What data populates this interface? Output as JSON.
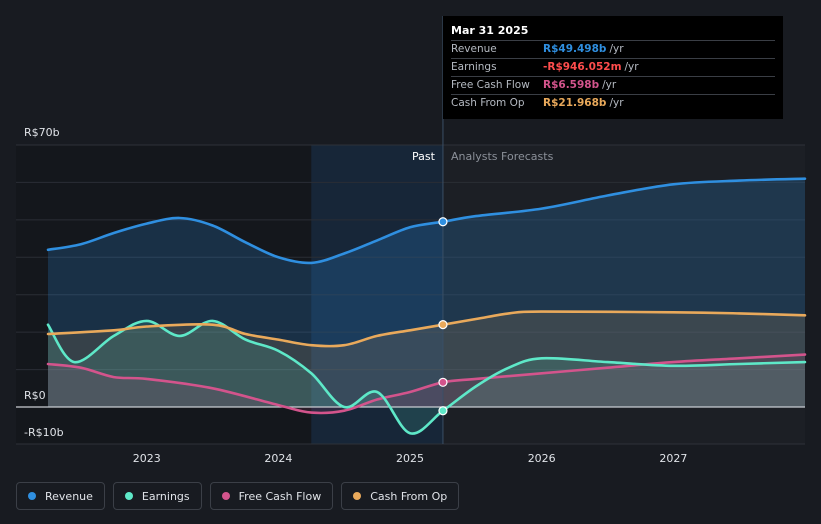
{
  "chart_data": {
    "type": "line",
    "title": "",
    "xlabel": "",
    "ylabel": "",
    "ylim": [
      -10,
      70
    ],
    "xlim": [
      2022.25,
      2028.0
    ],
    "y_tick_labels": [
      {
        "value": 70,
        "label": "R$70b"
      },
      {
        "value": 0,
        "label": "R$0"
      },
      {
        "value": -10,
        "label": "-R$10b"
      }
    ],
    "x_ticks": [
      {
        "value": 2023,
        "label": "2023"
      },
      {
        "value": 2024,
        "label": "2024"
      },
      {
        "value": 2025,
        "label": "2025"
      },
      {
        "value": 2026,
        "label": "2026"
      },
      {
        "value": 2027,
        "label": "2027"
      }
    ],
    "divider_x": 2025.25,
    "highlight_start_x": 2024.25,
    "past_label": "Past",
    "forecast_label": "Analysts Forecasts",
    "series": [
      {
        "name": "Revenue",
        "color": "#2f8fe0",
        "points": [
          [
            2022.25,
            42.0
          ],
          [
            2022.5,
            43.5
          ],
          [
            2022.75,
            46.5
          ],
          [
            2023.0,
            49.0
          ],
          [
            2023.25,
            50.5
          ],
          [
            2023.5,
            48.5
          ],
          [
            2023.75,
            44.0
          ],
          [
            2024.0,
            40.0
          ],
          [
            2024.25,
            38.5
          ],
          [
            2024.5,
            41.0
          ],
          [
            2024.75,
            44.5
          ],
          [
            2025.0,
            48.0
          ],
          [
            2025.25,
            49.5
          ],
          [
            2025.5,
            51.0
          ],
          [
            2026.0,
            53.0
          ],
          [
            2026.5,
            56.5
          ],
          [
            2027.0,
            59.5
          ],
          [
            2027.5,
            60.5
          ],
          [
            2028.0,
            61.0
          ]
        ]
      },
      {
        "name": "Earnings",
        "color": "#5ee8c8",
        "points": [
          [
            2022.25,
            22.0
          ],
          [
            2022.45,
            12.0
          ],
          [
            2022.75,
            19.0
          ],
          [
            2023.0,
            23.0
          ],
          [
            2023.25,
            19.0
          ],
          [
            2023.5,
            23.0
          ],
          [
            2023.75,
            18.0
          ],
          [
            2024.0,
            15.0
          ],
          [
            2024.25,
            9.0
          ],
          [
            2024.5,
            0.0
          ],
          [
            2024.75,
            4.0
          ],
          [
            2025.0,
            -7.0
          ],
          [
            2025.25,
            -1.0
          ],
          [
            2025.5,
            5.5
          ],
          [
            2025.75,
            10.5
          ],
          [
            2026.0,
            13.0
          ],
          [
            2026.5,
            12.0
          ],
          [
            2027.0,
            11.0
          ],
          [
            2027.5,
            11.5
          ],
          [
            2028.0,
            12.0
          ]
        ]
      },
      {
        "name": "Free Cash Flow",
        "color": "#d3548c",
        "points": [
          [
            2022.25,
            11.5
          ],
          [
            2022.5,
            10.5
          ],
          [
            2022.75,
            8.0
          ],
          [
            2023.0,
            7.5
          ],
          [
            2023.5,
            5.0
          ],
          [
            2024.0,
            0.5
          ],
          [
            2024.25,
            -1.5
          ],
          [
            2024.5,
            -1.0
          ],
          [
            2024.75,
            2.0
          ],
          [
            2025.0,
            4.0
          ],
          [
            2025.25,
            6.6
          ],
          [
            2025.5,
            7.5
          ],
          [
            2026.0,
            9.0
          ],
          [
            2026.5,
            10.5
          ],
          [
            2027.0,
            12.0
          ],
          [
            2027.5,
            13.0
          ],
          [
            2028.0,
            14.0
          ]
        ]
      },
      {
        "name": "Cash From Op",
        "color": "#e9a95b",
        "points": [
          [
            2022.25,
            19.5
          ],
          [
            2022.75,
            20.5
          ],
          [
            2023.0,
            21.5
          ],
          [
            2023.5,
            22.0
          ],
          [
            2023.75,
            19.5
          ],
          [
            2024.0,
            18.0
          ],
          [
            2024.25,
            16.5
          ],
          [
            2024.5,
            16.5
          ],
          [
            2024.75,
            19.0
          ],
          [
            2025.0,
            20.5
          ],
          [
            2025.25,
            22.0
          ],
          [
            2025.5,
            23.5
          ],
          [
            2025.75,
            25.0
          ],
          [
            2026.0,
            25.5
          ],
          [
            2027.0,
            25.3
          ],
          [
            2027.5,
            25.0
          ],
          [
            2028.0,
            24.5
          ]
        ]
      }
    ]
  },
  "tooltip": {
    "date": "Mar 31 2025",
    "rows": [
      {
        "label": "Revenue",
        "value": "R$49.498b",
        "unit": "/yr",
        "color": "#2f8fe0"
      },
      {
        "label": "Earnings",
        "value": "-R$946.052m",
        "unit": "/yr",
        "color": "#ff4d4d"
      },
      {
        "label": "Free Cash Flow",
        "value": "R$6.598b",
        "unit": "/yr",
        "color": "#d3548c"
      },
      {
        "label": "Cash From Op",
        "value": "R$21.968b",
        "unit": "/yr",
        "color": "#e9a95b"
      }
    ]
  },
  "legend": [
    {
      "label": "Revenue",
      "color": "#2f8fe0"
    },
    {
      "label": "Earnings",
      "color": "#5ee8c8"
    },
    {
      "label": "Free Cash Flow",
      "color": "#d3548c"
    },
    {
      "label": "Cash From Op",
      "color": "#e9a95b"
    }
  ]
}
